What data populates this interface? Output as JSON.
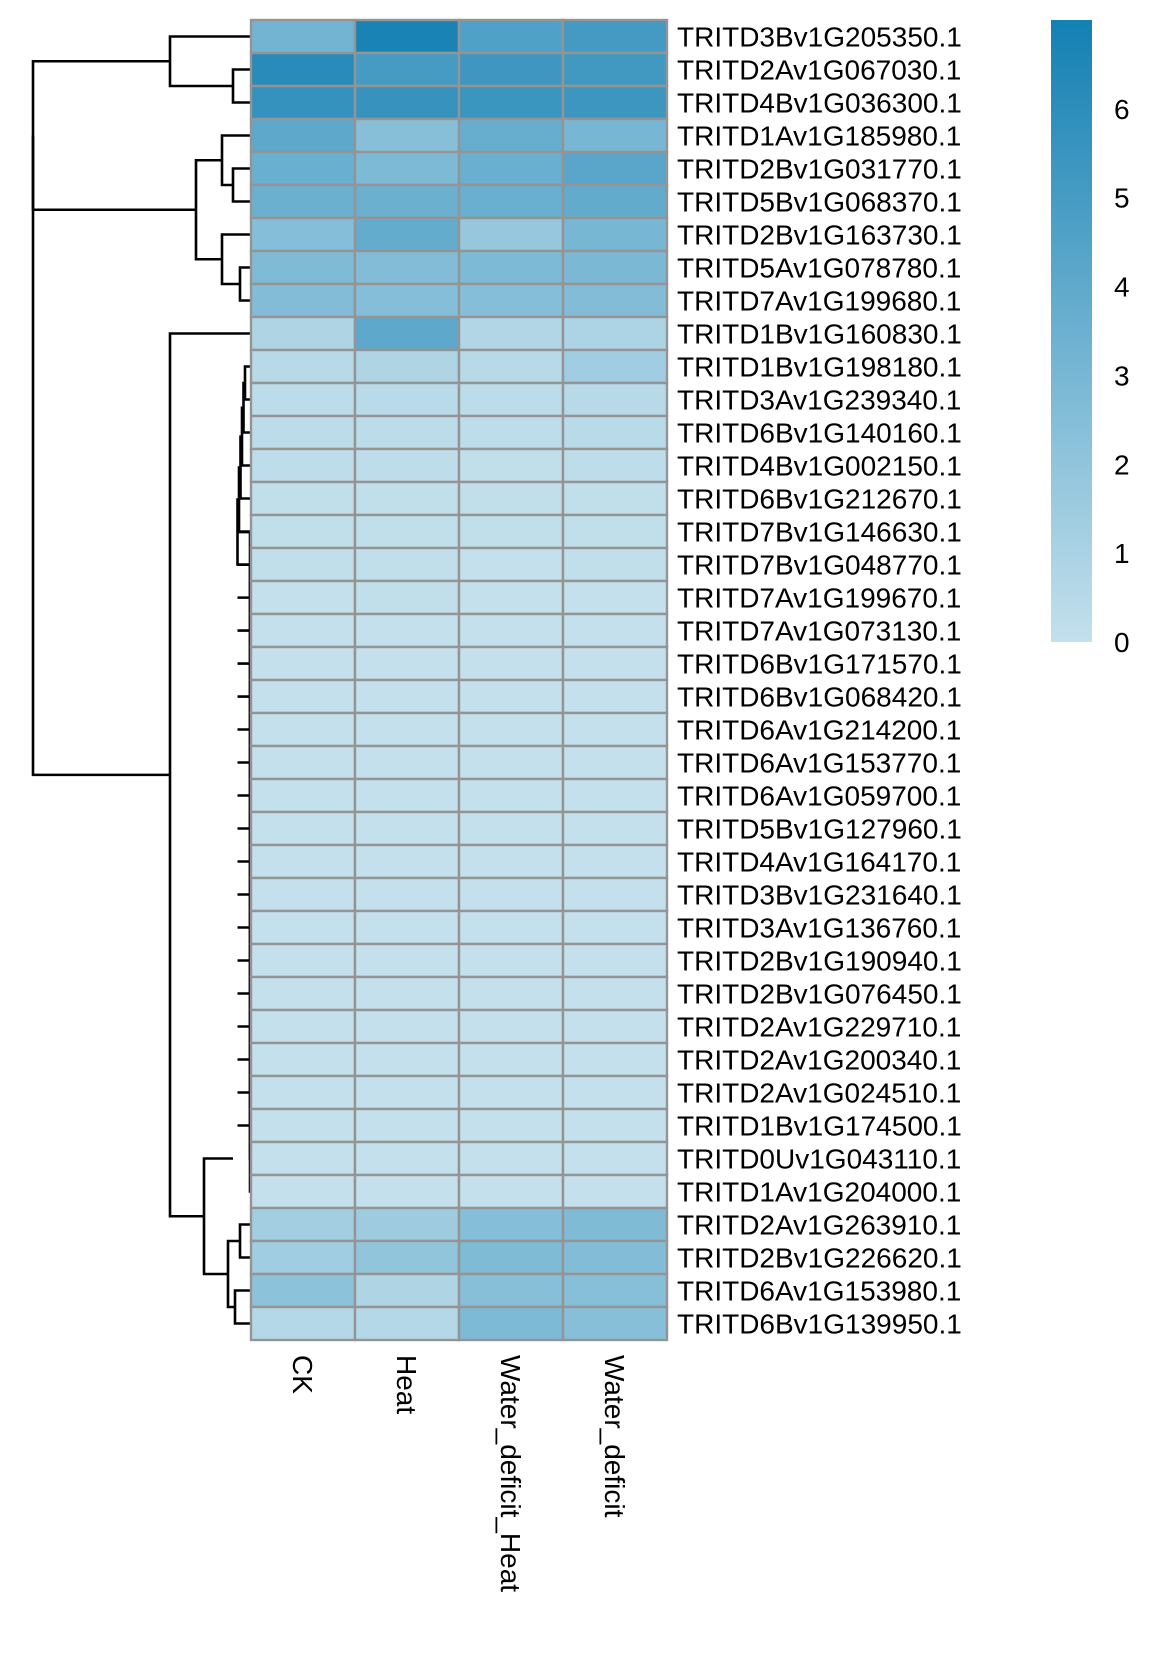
{
  "chart_data": {
    "type": "heatmap",
    "title": "",
    "xlabel": "",
    "ylabel": "",
    "columns": [
      "CK",
      "Heat",
      "Water_deficit_Heat",
      "Water_deficit"
    ],
    "rows": [
      "TRITD3Bv1G205350.1",
      "TRITD2Av1G067030.1",
      "TRITD4Bv1G036300.1",
      "TRITD1Av1G185980.1",
      "TRITD2Bv1G031770.1",
      "TRITD5Bv1G068370.1",
      "TRITD2Bv1G163730.1",
      "TRITD5Av1G078780.1",
      "TRITD7Av1G199680.1",
      "TRITD1Bv1G160830.1",
      "TRITD1Bv1G198180.1",
      "TRITD3Av1G239340.1",
      "TRITD6Bv1G140160.1",
      "TRITD4Bv1G002150.1",
      "TRITD6Bv1G212670.1",
      "TRITD7Bv1G146630.1",
      "TRITD7Bv1G048770.1",
      "TRITD7Av1G199670.1",
      "TRITD7Av1G073130.1",
      "TRITD6Bv1G171570.1",
      "TRITD6Bv1G068420.1",
      "TRITD6Av1G214200.1",
      "TRITD6Av1G153770.1",
      "TRITD6Av1G059700.1",
      "TRITD5Bv1G127960.1",
      "TRITD4Av1G164170.1",
      "TRITD3Bv1G231640.1",
      "TRITD3Av1G136760.1",
      "TRITD2Bv1G190940.1",
      "TRITD2Bv1G076450.1",
      "TRITD2Av1G229710.1",
      "TRITD2Av1G200340.1",
      "TRITD2Av1G024510.1",
      "TRITD1Bv1G174500.1",
      "TRITD0Uv1G043110.1",
      "TRITD1Av1G204000.1",
      "TRITD2Av1G263910.1",
      "TRITD2Bv1G226620.1",
      "TRITD6Av1G153980.1",
      "TRITD6Bv1G139950.1"
    ],
    "values": [
      [
        3.2,
        6.8,
        4.6,
        5.1
      ],
      [
        6.2,
        5.0,
        5.3,
        5.2
      ],
      [
        5.7,
        5.6,
        5.5,
        5.4
      ],
      [
        4.1,
        2.4,
        3.7,
        3.0
      ],
      [
        3.6,
        2.8,
        3.6,
        4.2
      ],
      [
        3.5,
        3.5,
        3.6,
        3.9
      ],
      [
        2.5,
        3.8,
        1.8,
        3.0
      ],
      [
        2.7,
        2.6,
        2.8,
        2.9
      ],
      [
        2.6,
        2.5,
        2.5,
        2.6
      ],
      [
        0.8,
        4.1,
        0.7,
        0.9
      ],
      [
        0.5,
        0.8,
        0.5,
        1.4
      ],
      [
        0.3,
        0.4,
        0.3,
        0.5
      ],
      [
        0.3,
        0.3,
        0.2,
        0.4
      ],
      [
        0.2,
        0.2,
        0.1,
        0.2
      ],
      [
        0.1,
        0.1,
        0.1,
        0.1
      ],
      [
        0.1,
        0.1,
        0.1,
        0.1
      ],
      [
        0.1,
        0.1,
        0.0,
        0.1
      ],
      [
        0.0,
        0.1,
        0.0,
        0.0
      ],
      [
        0.0,
        0.0,
        0.0,
        0.0
      ],
      [
        0.0,
        0.0,
        0.0,
        0.0
      ],
      [
        0.0,
        0.0,
        0.0,
        0.0
      ],
      [
        0.0,
        0.0,
        0.0,
        0.0
      ],
      [
        0.0,
        0.0,
        0.0,
        0.0
      ],
      [
        0.0,
        0.0,
        0.0,
        0.0
      ],
      [
        0.0,
        0.0,
        0.0,
        0.0
      ],
      [
        0.0,
        0.0,
        0.0,
        0.0
      ],
      [
        0.0,
        0.0,
        0.0,
        0.0
      ],
      [
        0.0,
        0.0,
        0.0,
        0.0
      ],
      [
        0.0,
        0.0,
        0.0,
        0.0
      ],
      [
        0.0,
        0.0,
        0.0,
        0.0
      ],
      [
        0.0,
        0.0,
        0.0,
        0.0
      ],
      [
        0.0,
        0.0,
        0.0,
        0.0
      ],
      [
        0.0,
        0.0,
        0.0,
        0.0
      ],
      [
        0.0,
        0.0,
        0.0,
        0.0
      ],
      [
        0.0,
        0.0,
        0.0,
        0.0
      ],
      [
        0.0,
        0.0,
        0.0,
        0.0
      ],
      [
        1.3,
        1.5,
        2.5,
        2.7
      ],
      [
        1.4,
        2.0,
        2.7,
        2.6
      ],
      [
        2.2,
        0.8,
        2.4,
        2.4
      ],
      [
        0.6,
        0.6,
        2.8,
        2.4
      ]
    ],
    "color_scale": {
      "min": 0,
      "max": 7,
      "low_color": "#c3e0ec",
      "high_color": "#1480b3",
      "ticks": [
        0,
        1,
        2,
        3,
        4,
        5,
        6
      ]
    },
    "cell_border_color": "#949494",
    "row_dendrogram": true,
    "legend_placement": "right",
    "grid": false
  }
}
